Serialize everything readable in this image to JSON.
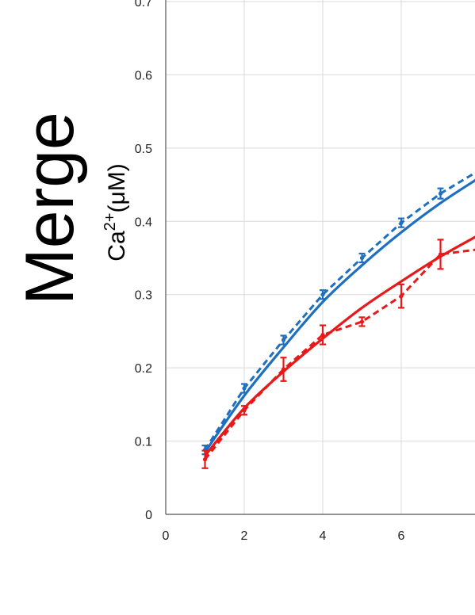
{
  "panel_title": "Merge",
  "ylabel": {
    "base": "Ca",
    "sup": "2+",
    "unit": "(μM)"
  },
  "chart_data": {
    "type": "line",
    "title": "",
    "xlabel": "",
    "ylabel": "Ca2+(μM)",
    "xlim": [
      0,
      9
    ],
    "ylim": [
      0,
      0.7
    ],
    "x_ticks": [
      "0",
      "2",
      "4",
      "6"
    ],
    "y_ticks": [
      "0",
      "0.1",
      "0.2",
      "0.3",
      "0.4",
      "0.5",
      "0.6",
      "0.7"
    ],
    "grid": true,
    "series": [
      {
        "color": "#1f6fbf",
        "style": "dashed-markers",
        "x": [
          1,
          2,
          3,
          4,
          5,
          6,
          7,
          8
        ],
        "y": [
          0.088,
          0.172,
          0.238,
          0.3,
          0.35,
          0.398,
          0.438,
          0.47
        ],
        "err": [
          0.006,
          0.006,
          0.006,
          0.006,
          0.006,
          0.006,
          0.007,
          0.007
        ]
      },
      {
        "color": "#1f6fbf",
        "style": "solid-fit",
        "x": [
          1,
          2,
          3,
          4,
          5,
          6,
          7,
          8
        ],
        "y": [
          0.085,
          0.162,
          0.228,
          0.29,
          0.34,
          0.385,
          0.425,
          0.46
        ]
      },
      {
        "color": "#e8191b",
        "style": "dashed-markers",
        "x": [
          1,
          2,
          3,
          4,
          5,
          6,
          7,
          8
        ],
        "y": [
          0.075,
          0.142,
          0.198,
          0.245,
          0.263,
          0.298,
          0.355,
          0.362
        ],
        "err": [
          0.012,
          0.006,
          0.016,
          0.013,
          0.006,
          0.016,
          0.02,
          0.01
        ]
      },
      {
        "color": "#e8191b",
        "style": "solid-fit",
        "x": [
          1,
          2,
          3,
          4,
          5,
          6,
          7,
          8
        ],
        "y": [
          0.08,
          0.145,
          0.195,
          0.24,
          0.282,
          0.318,
          0.352,
          0.382
        ]
      }
    ]
  }
}
